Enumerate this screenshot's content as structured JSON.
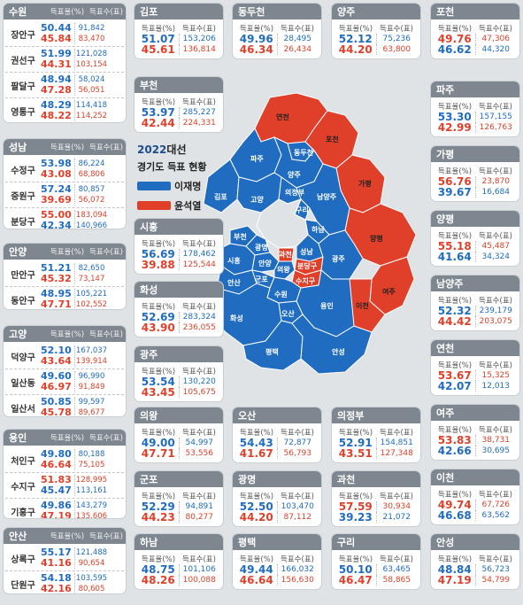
{
  "header_cols": {
    "rate": "득표율(%)",
    "count": "득표수(표)"
  },
  "legend": {
    "year": "2022",
    "title_rest": "대선",
    "subtitle": "경기도 득표 현황",
    "lee": "이재명",
    "yoon": "윤석열"
  },
  "colors": {
    "lee": "#1f6cc0",
    "yoon": "#e0402a",
    "header": "#7e8790"
  },
  "cities_multi": [
    {
      "name": "수원",
      "subs": [
        {
          "name": "장안구",
          "lee_rate": "50.44",
          "lee_cnt": "91,842",
          "yoon_rate": "45.84",
          "yoon_cnt": "83,470"
        },
        {
          "name": "권선구",
          "lee_rate": "51.99",
          "lee_cnt": "121,028",
          "yoon_rate": "44.31",
          "yoon_cnt": "103,154"
        },
        {
          "name": "팔달구",
          "lee_rate": "48.94",
          "lee_cnt": "58,024",
          "yoon_rate": "47.28",
          "yoon_cnt": "56,051"
        },
        {
          "name": "영통구",
          "lee_rate": "48.29",
          "lee_cnt": "114,418",
          "yoon_rate": "48.22",
          "yoon_cnt": "114,252"
        }
      ]
    },
    {
      "name": "성남",
      "subs": [
        {
          "name": "수정구",
          "lee_rate": "53.98",
          "lee_cnt": "86,224",
          "yoon_rate": "43.08",
          "yoon_cnt": "68,806"
        },
        {
          "name": "중원구",
          "lee_rate": "57.24",
          "lee_cnt": "80,857",
          "yoon_rate": "39.69",
          "yoon_cnt": "56,072"
        },
        {
          "name": "분당구",
          "lee_rate": "42.34",
          "lee_cnt": "140,966",
          "yoon_rate": "55.00",
          "yoon_cnt": "183,094",
          "yoon_first": true
        }
      ]
    },
    {
      "name": "안양",
      "subs": [
        {
          "name": "만안구",
          "lee_rate": "51.21",
          "lee_cnt": "82,650",
          "yoon_rate": "45.32",
          "yoon_cnt": "73,147"
        },
        {
          "name": "동안구",
          "lee_rate": "48.95",
          "lee_cnt": "105,221",
          "yoon_rate": "47.71",
          "yoon_cnt": "102,552"
        }
      ]
    },
    {
      "name": "고양",
      "subs": [
        {
          "name": "덕양구",
          "lee_rate": "52.10",
          "lee_cnt": "167,037",
          "yoon_rate": "43.64",
          "yoon_cnt": "139,914"
        },
        {
          "name": "일산동",
          "lee_rate": "49.60",
          "lee_cnt": "96,990",
          "yoon_rate": "46.97",
          "yoon_cnt": "91,849"
        },
        {
          "name": "일산서",
          "lee_rate": "50.85",
          "lee_cnt": "99,597",
          "yoon_rate": "45.78",
          "yoon_cnt": "89,677"
        }
      ]
    },
    {
      "name": "용인",
      "subs": [
        {
          "name": "처인구",
          "lee_rate": "49.80",
          "lee_cnt": "80,188",
          "yoon_rate": "46.64",
          "yoon_cnt": "75,105"
        },
        {
          "name": "수지구",
          "lee_rate": "45.47",
          "lee_cnt": "113,161",
          "yoon_rate": "51.83",
          "yoon_cnt": "128,995",
          "yoon_first": true
        },
        {
          "name": "기흥구",
          "lee_rate": "49.86",
          "lee_cnt": "143,279",
          "yoon_rate": "47.19",
          "yoon_cnt": "135,606"
        }
      ]
    },
    {
      "name": "안산",
      "subs": [
        {
          "name": "상록구",
          "lee_rate": "55.17",
          "lee_cnt": "121,488",
          "yoon_rate": "41.16",
          "yoon_cnt": "90,654"
        },
        {
          "name": "단원구",
          "lee_rate": "54.18",
          "lee_cnt": "103,595",
          "yoon_rate": "42.16",
          "yoon_cnt": "80,605"
        }
      ]
    }
  ],
  "cities": [
    {
      "name": "김포",
      "lee_rate": "51.07",
      "lee_cnt": "153,206",
      "yoon_rate": "45.61",
      "yoon_cnt": "136,814"
    },
    {
      "name": "동두천",
      "lee_rate": "49.96",
      "lee_cnt": "28,495",
      "yoon_rate": "46.34",
      "yoon_cnt": "26,434"
    },
    {
      "name": "양주",
      "lee_rate": "52.12",
      "lee_cnt": "75,236",
      "yoon_rate": "44.20",
      "yoon_cnt": "63,800"
    },
    {
      "name": "포천",
      "lee_rate": "46.62",
      "lee_cnt": "44,320",
      "yoon_rate": "49.76",
      "yoon_cnt": "47,306",
      "yoon_first": true
    },
    {
      "name": "부천",
      "lee_rate": "53.97",
      "lee_cnt": "285,227",
      "yoon_rate": "42.44",
      "yoon_cnt": "224,331"
    },
    {
      "name": "파주",
      "lee_rate": "53.30",
      "lee_cnt": "157,155",
      "yoon_rate": "42.99",
      "yoon_cnt": "126,763"
    },
    {
      "name": "가평",
      "lee_rate": "39.67",
      "lee_cnt": "16,684",
      "yoon_rate": "56.76",
      "yoon_cnt": "23,870",
      "yoon_first": true
    },
    {
      "name": "시흥",
      "lee_rate": "56.69",
      "lee_cnt": "178,462",
      "yoon_rate": "39.88",
      "yoon_cnt": "125,544"
    },
    {
      "name": "양평",
      "lee_rate": "41.64",
      "lee_cnt": "34,324",
      "yoon_rate": "55.18",
      "yoon_cnt": "45,487",
      "yoon_first": true
    },
    {
      "name": "화성",
      "lee_rate": "52.69",
      "lee_cnt": "283,324",
      "yoon_rate": "43.90",
      "yoon_cnt": "236,055"
    },
    {
      "name": "남양주",
      "lee_rate": "52.32",
      "lee_cnt": "239,179",
      "yoon_rate": "44.42",
      "yoon_cnt": "203,075"
    },
    {
      "name": "광주",
      "lee_rate": "53.54",
      "lee_cnt": "130,220",
      "yoon_rate": "43.45",
      "yoon_cnt": "105,675"
    },
    {
      "name": "연천",
      "lee_rate": "42.07",
      "lee_cnt": "12,013",
      "yoon_rate": "53.67",
      "yoon_cnt": "15,325",
      "yoon_first": true
    },
    {
      "name": "의왕",
      "lee_rate": "49.00",
      "lee_cnt": "54,997",
      "yoon_rate": "47.71",
      "yoon_cnt": "53,556"
    },
    {
      "name": "오산",
      "lee_rate": "54.43",
      "lee_cnt": "72,877",
      "yoon_rate": "41.67",
      "yoon_cnt": "56,793"
    },
    {
      "name": "의정부",
      "lee_rate": "52.91",
      "lee_cnt": "154,851",
      "yoon_rate": "43.51",
      "yoon_cnt": "127,348"
    },
    {
      "name": "여주",
      "lee_rate": "42.66",
      "lee_cnt": "30,695",
      "yoon_rate": "53.83",
      "yoon_cnt": "38,731",
      "yoon_first": true
    },
    {
      "name": "군포",
      "lee_rate": "52.29",
      "lee_cnt": "94,891",
      "yoon_rate": "44.23",
      "yoon_cnt": "80,277"
    },
    {
      "name": "광명",
      "lee_rate": "52.50",
      "lee_cnt": "103,470",
      "yoon_rate": "44.20",
      "yoon_cnt": "87,112"
    },
    {
      "name": "과천",
      "lee_rate": "39.23",
      "lee_cnt": "21,072",
      "yoon_rate": "57.59",
      "yoon_cnt": "30,934",
      "yoon_first": true
    },
    {
      "name": "이천",
      "lee_rate": "46.68",
      "lee_cnt": "63,562",
      "yoon_rate": "49.74",
      "yoon_cnt": "67,726",
      "yoon_first": true
    },
    {
      "name": "하남",
      "lee_rate": "48.75",
      "lee_cnt": "101,106",
      "yoon_rate": "48.26",
      "yoon_cnt": "100,088"
    },
    {
      "name": "평택",
      "lee_rate": "49.44",
      "lee_cnt": "166,032",
      "yoon_rate": "46.64",
      "yoon_cnt": "156,630"
    },
    {
      "name": "구리",
      "lee_rate": "50.10",
      "lee_cnt": "63,465",
      "yoon_rate": "46.47",
      "yoon_cnt": "58,865"
    },
    {
      "name": "안성",
      "lee_rate": "48.84",
      "lee_cnt": "56,723",
      "yoon_rate": "47.19",
      "yoon_cnt": "54,799"
    }
  ],
  "map_labels": {
    "yeoncheon": "연천",
    "pocheon": "포천",
    "dongducheon": "동두천",
    "paju": "파주",
    "yangju": "양주",
    "gapyeong": "가평",
    "uijeongbu": "의정부",
    "gimpo": "김포",
    "goyang": "고양",
    "namyangju": "남양주",
    "guri": "구리",
    "hanam": "하남",
    "yangpyeong": "양평",
    "bucheon": "부천",
    "gwangmyeong": "광명",
    "gwacheon": "과천",
    "seongnam": "성남",
    "bundang": "분당구",
    "gwangju": "광주",
    "siheung": "시흥",
    "anyang": "안양",
    "uiwang": "의왕",
    "ansan": "안산",
    "gunpo": "군포",
    "suji": "수지구",
    "yeoju": "여주",
    "suwon": "수원",
    "yongin": "용인",
    "icheon": "이천",
    "hwaseong": "화성",
    "osan": "오산",
    "pyeongtaek": "평택",
    "anseong": "안성"
  }
}
